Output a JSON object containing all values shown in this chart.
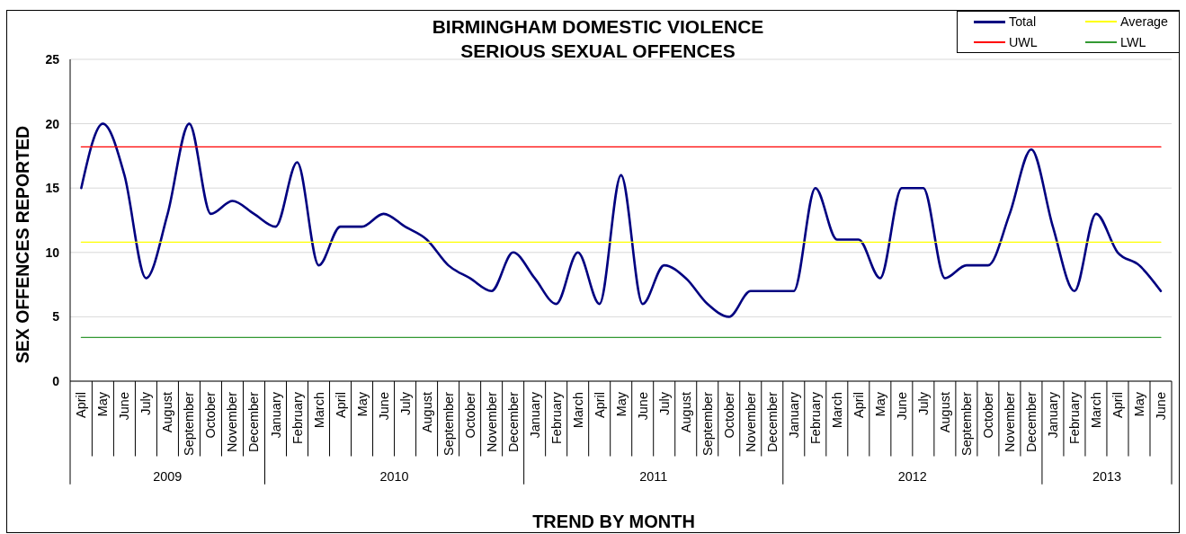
{
  "chart_data": {
    "type": "line",
    "title": "BIRMINGHAM DOMESTIC VIOLENCE",
    "subtitle": "SERIOUS SEXUAL OFFENCES",
    "xlabel": "TREND BY MONTH",
    "ylabel": "SEX OFFENCES REPORTED",
    "x": [
      "2009-04",
      "2009-05",
      "2009-06",
      "2009-07",
      "2009-08",
      "2009-09",
      "2009-10",
      "2009-11",
      "2009-12",
      "2010-01",
      "2010-02",
      "2010-03",
      "2010-04",
      "2010-05",
      "2010-06",
      "2010-07",
      "2010-08",
      "2010-09",
      "2010-10",
      "2010-11",
      "2010-12",
      "2011-01",
      "2011-02",
      "2011-03",
      "2011-04",
      "2011-05",
      "2011-06",
      "2011-07",
      "2011-08",
      "2011-09",
      "2011-10",
      "2011-11",
      "2011-12",
      "2012-01",
      "2012-02",
      "2012-03",
      "2012-04",
      "2012-05",
      "2012-06",
      "2012-07",
      "2012-08",
      "2012-09",
      "2012-10",
      "2012-11",
      "2012-12",
      "2013-01",
      "2013-02",
      "2013-03",
      "2013-04",
      "2013-05",
      "2013-06"
    ],
    "xlim": [
      "2009-03-16",
      "2013-06-16"
    ],
    "xticks": [
      {
        "value": "2009-04",
        "label": "April"
      },
      {
        "value": "2009-05",
        "label": "May"
      },
      {
        "value": "2009-06",
        "label": "June"
      },
      {
        "value": "2009-07",
        "label": "July"
      },
      {
        "value": "2009-08",
        "label": "August"
      },
      {
        "value": "2009-09",
        "label": "September"
      },
      {
        "value": "2009-10",
        "label": "October"
      },
      {
        "value": "2009-11",
        "label": "November"
      },
      {
        "value": "2009-12",
        "label": "December"
      },
      {
        "value": "2010-01",
        "label": "January"
      },
      {
        "value": "2010-02",
        "label": "February"
      },
      {
        "value": "2010-03",
        "label": "March"
      },
      {
        "value": "2010-04",
        "label": "April"
      },
      {
        "value": "2010-05",
        "label": "May"
      },
      {
        "value": "2010-06",
        "label": "June"
      },
      {
        "value": "2010-07",
        "label": "July"
      },
      {
        "value": "2010-08",
        "label": "August"
      },
      {
        "value": "2010-09",
        "label": "September"
      },
      {
        "value": "2010-10",
        "label": "October"
      },
      {
        "value": "2010-11",
        "label": "November"
      },
      {
        "value": "2010-12",
        "label": "December"
      },
      {
        "value": "2011-01",
        "label": "January"
      },
      {
        "value": "2011-02",
        "label": "February"
      },
      {
        "value": "2011-03",
        "label": "March"
      },
      {
        "value": "2011-04",
        "label": "April"
      },
      {
        "value": "2011-05",
        "label": "May"
      },
      {
        "value": "2011-06",
        "label": "June"
      },
      {
        "value": "2011-07",
        "label": "July"
      },
      {
        "value": "2011-08",
        "label": "August"
      },
      {
        "value": "2011-09",
        "label": "September"
      },
      {
        "value": "2011-10",
        "label": "October"
      },
      {
        "value": "2011-11",
        "label": "November"
      },
      {
        "value": "2011-12",
        "label": "December"
      },
      {
        "value": "2012-01",
        "label": "January"
      },
      {
        "value": "2012-02",
        "label": "February"
      },
      {
        "value": "2012-03",
        "label": "March"
      },
      {
        "value": "2012-04",
        "label": "April"
      },
      {
        "value": "2012-05",
        "label": "May"
      },
      {
        "value": "2012-06",
        "label": "June"
      },
      {
        "value": "2012-07",
        "label": "July"
      },
      {
        "value": "2012-08",
        "label": "August"
      },
      {
        "value": "2012-09",
        "label": "September"
      },
      {
        "value": "2012-10",
        "label": "October"
      },
      {
        "value": "2012-11",
        "label": "November"
      },
      {
        "value": "2012-12",
        "label": "December"
      },
      {
        "value": "2013-01",
        "label": "January"
      },
      {
        "value": "2013-02",
        "label": "February"
      },
      {
        "value": "2013-03",
        "label": "March"
      },
      {
        "value": "2013-04",
        "label": "April"
      },
      {
        "value": "2013-05",
        "label": "May"
      },
      {
        "value": "2013-06",
        "label": "June"
      }
    ],
    "annotations": [
      "2009",
      "2010",
      "2011",
      "2012",
      "2013"
    ],
    "ylim": [
      0,
      25
    ],
    "yticks": [
      0,
      5,
      10,
      15,
      20,
      25
    ],
    "grid": "y",
    "legend": "top right",
    "series": [
      {
        "name": "Total",
        "color": "#000080",
        "values": [
          15,
          20,
          16,
          8,
          13,
          20,
          13,
          14,
          13,
          12,
          17,
          9,
          12,
          12,
          13,
          12,
          11,
          9,
          8,
          7,
          10,
          8,
          6,
          10,
          6,
          16,
          6,
          9,
          8,
          6,
          5,
          7,
          7,
          7,
          15,
          11,
          11,
          8,
          15,
          15,
          8,
          9,
          9,
          13,
          18,
          12,
          7,
          13,
          10,
          9,
          7
        ]
      },
      {
        "name": "Average",
        "color": "#ffff00",
        "values": [
          10.8,
          10.8,
          10.8,
          10.8,
          10.8,
          10.8,
          10.8,
          10.8,
          10.8,
          10.8,
          10.8,
          10.8,
          10.8,
          10.8,
          10.8,
          10.8,
          10.8,
          10.8,
          10.8,
          10.8,
          10.8,
          10.8,
          10.8,
          10.8,
          10.8,
          10.8,
          10.8,
          10.8,
          10.8,
          10.8,
          10.8,
          10.8,
          10.8,
          10.8,
          10.8,
          10.8,
          10.8,
          10.8,
          10.8,
          10.8,
          10.8,
          10.8,
          10.8,
          10.8,
          10.8,
          10.8,
          10.8,
          10.8,
          10.8,
          10.8,
          10.8
        ]
      },
      {
        "name": "UWL",
        "color": "#ff0000",
        "values": [
          18.2,
          18.2,
          18.2,
          18.2,
          18.2,
          18.2,
          18.2,
          18.2,
          18.2,
          18.2,
          18.2,
          18.2,
          18.2,
          18.2,
          18.2,
          18.2,
          18.2,
          18.2,
          18.2,
          18.2,
          18.2,
          18.2,
          18.2,
          18.2,
          18.2,
          18.2,
          18.2,
          18.2,
          18.2,
          18.2,
          18.2,
          18.2,
          18.2,
          18.2,
          18.2,
          18.2,
          18.2,
          18.2,
          18.2,
          18.2,
          18.2,
          18.2,
          18.2,
          18.2,
          18.2,
          18.2,
          18.2,
          18.2,
          18.2,
          18.2,
          18.2
        ]
      },
      {
        "name": "LWL",
        "color": "#339933",
        "values": [
          3.4,
          3.4,
          3.4,
          3.4,
          3.4,
          3.4,
          3.4,
          3.4,
          3.4,
          3.4,
          3.4,
          3.4,
          3.4,
          3.4,
          3.4,
          3.4,
          3.4,
          3.4,
          3.4,
          3.4,
          3.4,
          3.4,
          3.4,
          3.4,
          3.4,
          3.4,
          3.4,
          3.4,
          3.4,
          3.4,
          3.4,
          3.4,
          3.4,
          3.4,
          3.4,
          3.4,
          3.4,
          3.4,
          3.4,
          3.4,
          3.4,
          3.4,
          3.4,
          3.4,
          3.4,
          3.4,
          3.4,
          3.4,
          3.4,
          3.4,
          3.4
        ]
      }
    ]
  }
}
